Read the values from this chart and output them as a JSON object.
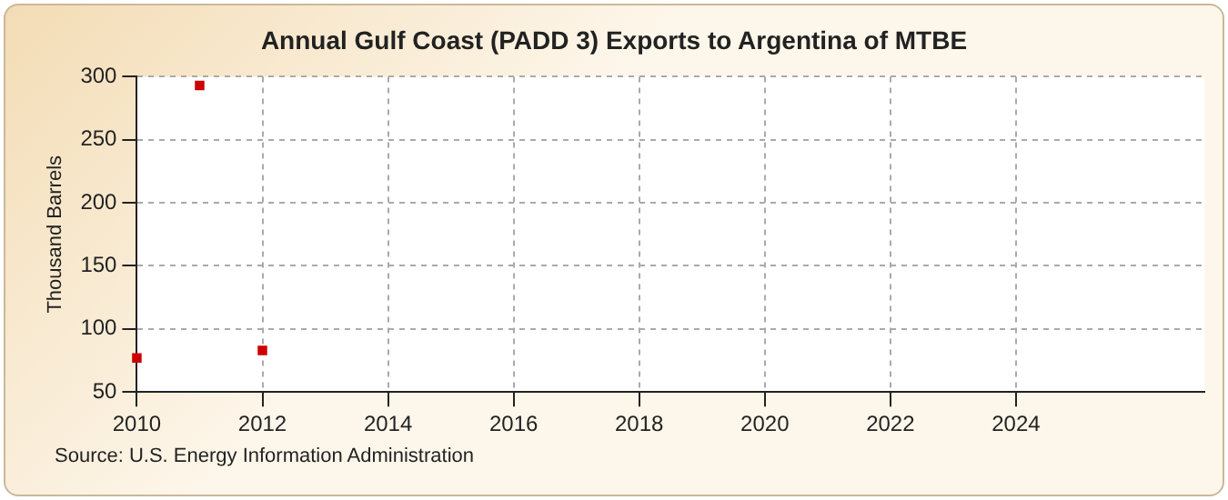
{
  "chart_data": {
    "type": "scatter",
    "title": "Annual Gulf Coast (PADD 3) Exports to Argentina of MTBE",
    "ylabel": "Thousand Barrels",
    "x": [
      2010,
      2011,
      2012
    ],
    "series": [
      {
        "color": "#cc0000",
        "values": [
          77,
          293,
          83
        ]
      }
    ],
    "xlim": [
      2010,
      2027
    ],
    "xticks": [
      2010,
      2012,
      2014,
      2016,
      2018,
      2020,
      2022,
      2024
    ],
    "ylim": [
      50,
      300
    ],
    "yticks": [
      50,
      100,
      150,
      200,
      250,
      300
    ],
    "grid": true,
    "marker": "square",
    "legend": false,
    "annotations": [
      "Source: U.S. Energy Information Administration"
    ]
  }
}
